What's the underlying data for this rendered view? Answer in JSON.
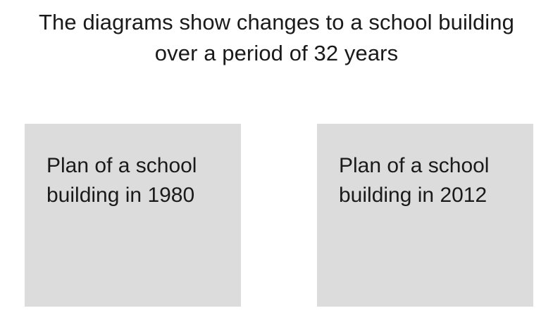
{
  "title": {
    "line1": "The diagrams show changes to a school building",
    "line2": "over a period of 32 years"
  },
  "panels": [
    {
      "line1": "Plan of a school",
      "line2": "building in 1980",
      "color": "#dcdcdc"
    },
    {
      "line1": "Plan of a school",
      "line2": "building in 2012",
      "color": "#dcdcdc"
    }
  ]
}
